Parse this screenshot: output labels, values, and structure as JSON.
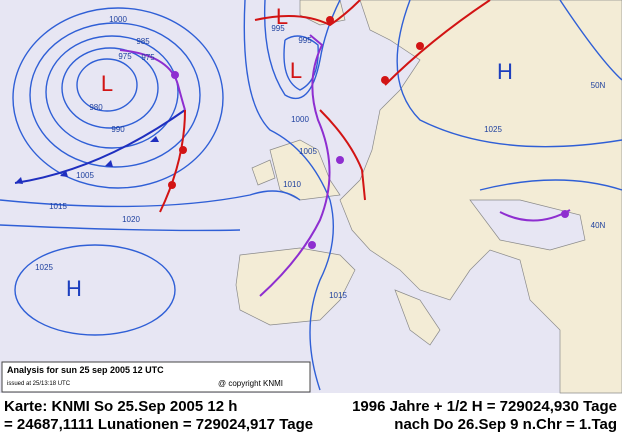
{
  "map": {
    "caption": {
      "title": "Analysis for sun 25 sep 2005 12 UTC",
      "issued": "issued at 25/13:18 UTC",
      "copyright": "@ copyright KNMI"
    },
    "centers": [
      "L",
      "L",
      "L",
      "H",
      "H"
    ],
    "isobar_labels": [
      "1000",
      "985",
      "975",
      "975",
      "980",
      "990",
      "1005",
      "1015",
      "1020",
      "1025",
      "995",
      "995",
      "1000",
      "1005",
      "1010",
      "1015",
      "1025"
    ],
    "latitude_labels": [
      "50N",
      "40N"
    ]
  },
  "footer": {
    "line1_left": "Karte: KNMI So 25.Sep 2005 12 h",
    "line1_right": "1996 Jahre + 1/2 H = 729024,930 Tage",
    "line2_left": "= 24687,1111 Lunationen = 729024,917 Tage",
    "line2_right": "nach Do 26.Sep 9 n.Chr = 1.Tag"
  }
}
